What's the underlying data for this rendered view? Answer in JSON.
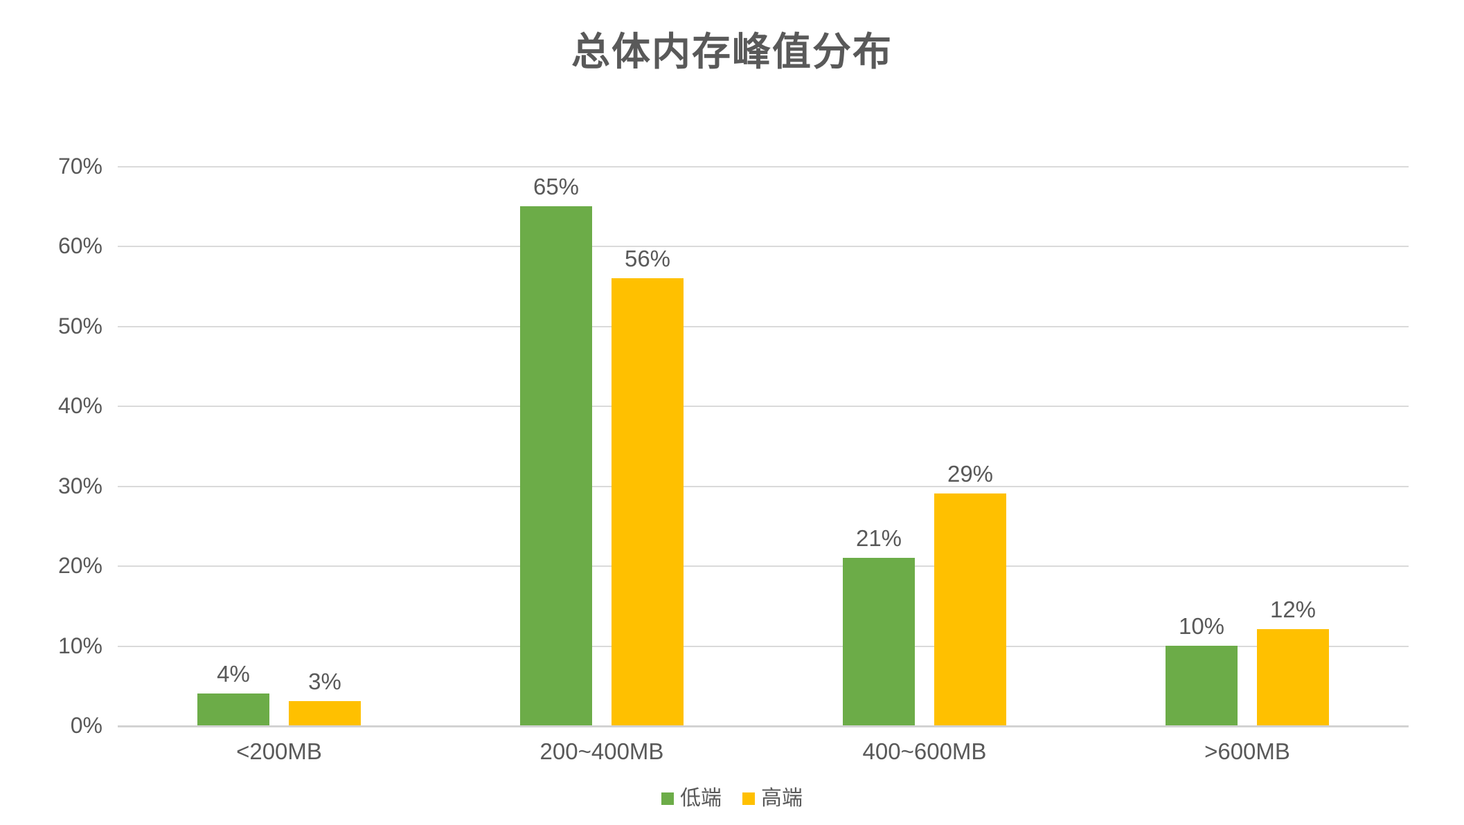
{
  "title": "总体内存峰值分布",
  "chart_data": {
    "type": "bar",
    "title": "总体内存峰值分布",
    "categories": [
      "<200MB",
      "200~400MB",
      "400~600MB",
      ">600MB"
    ],
    "series": [
      {
        "name": "低端",
        "color": "#6CAC48",
        "values": [
          4,
          65,
          21,
          10
        ],
        "data_labels": [
          "4%",
          "65%",
          "21%",
          "10%"
        ]
      },
      {
        "name": "高端",
        "color": "#FFC000",
        "values": [
          3,
          56,
          29,
          12
        ],
        "data_labels": [
          "3%",
          "56%",
          "29%",
          "12%"
        ]
      }
    ],
    "value_suffix": "%",
    "xlabel": "",
    "ylabel": "",
    "ylim": [
      0,
      70
    ],
    "ytick_step": 10,
    "ytick_labels": [
      "0%",
      "10%",
      "20%",
      "30%",
      "40%",
      "50%",
      "60%",
      "70%"
    ],
    "grid": true,
    "legend_position": "bottom",
    "legend_entries": [
      "低端",
      "高端"
    ]
  },
  "colors": {
    "series_low_end": "#6CAC48",
    "series_high_end": "#FFC000",
    "text": "#595959",
    "gridline": "#DADADA",
    "axis_line": "#D2D2D2",
    "background": "#FFFFFF"
  }
}
